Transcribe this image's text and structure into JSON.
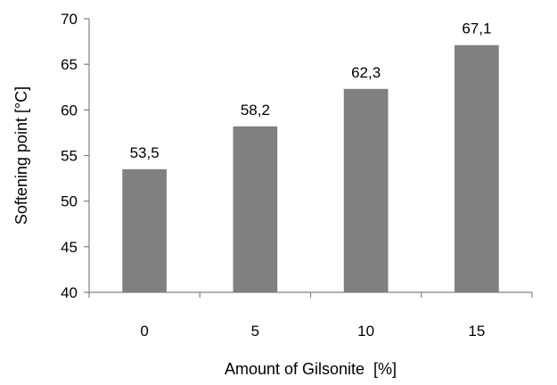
{
  "chart_data": {
    "type": "bar",
    "title": "",
    "categories": [
      "0",
      "5",
      "10",
      "15"
    ],
    "values": [
      53.5,
      58.2,
      62.3,
      67.1
    ],
    "data_labels": [
      "53,5",
      "58,2",
      "62,3",
      "67,1"
    ],
    "xlabel": "Amount of Gilsonite  [%]",
    "ylabel": "Softening point [°C]",
    "ylim": [
      40,
      70
    ],
    "yticks": [
      40,
      45,
      50,
      55,
      60,
      65,
      70
    ],
    "ytick_labels": [
      "40",
      "45",
      "50",
      "55",
      "60",
      "65",
      "70"
    ],
    "grid": false,
    "legend": "none",
    "colors": {
      "bar": "#808080",
      "axis": "#808080",
      "text": "#000000"
    }
  }
}
